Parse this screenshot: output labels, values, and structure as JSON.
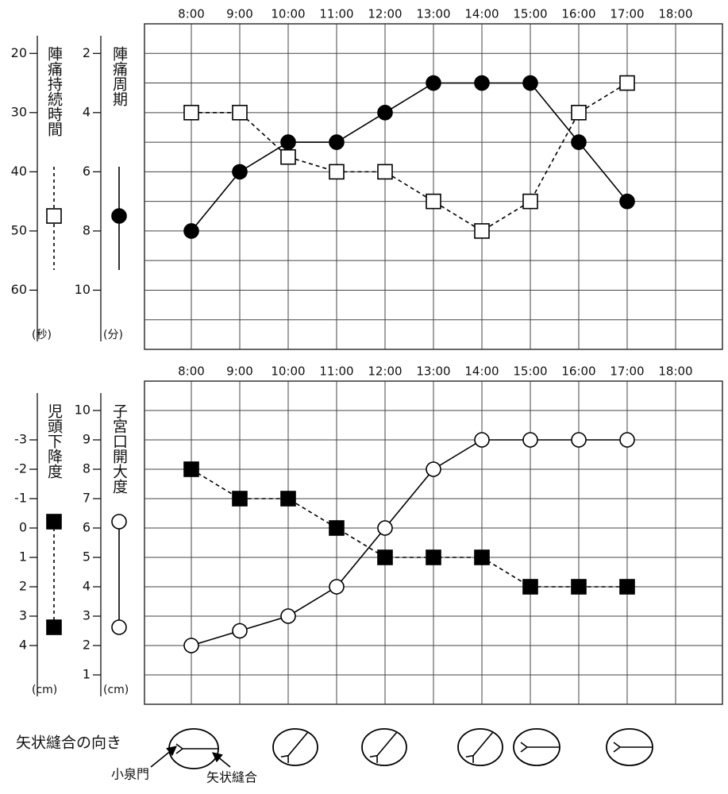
{
  "chart_data": [
    {
      "type": "line",
      "categories": [
        "8:00",
        "9:00",
        "10:00",
        "11:00",
        "12:00",
        "13:00",
        "14:00",
        "15:00",
        "16:00",
        "17:00",
        "18:00"
      ],
      "ylabel": "(分)",
      "y2label": "(秒)",
      "ylim": [
        12,
        1
      ],
      "yticks": [
        2,
        4,
        6,
        8,
        10
      ],
      "minor_yticks": [
        3,
        5,
        7,
        9,
        11
      ],
      "y2lim": [
        70,
        15
      ],
      "y2ticks": [
        20,
        30,
        40,
        50,
        60
      ],
      "grid": true,
      "series": [
        {
          "name": "陣痛周期",
          "color": "#000000",
          "marker": "circle",
          "marker_fill": "#000000",
          "line_style": "solid",
          "values": [
            8,
            6,
            5,
            5,
            4,
            3,
            3,
            3,
            5,
            7,
            null
          ]
        },
        {
          "name": "陣痛持続時間",
          "axis": "y2",
          "color": "#000000",
          "marker": "square",
          "marker_fill": "#ffffff",
          "line_style": "dashed",
          "values": [
            30,
            30,
            37.5,
            40,
            40,
            45,
            50,
            45,
            30,
            25,
            null
          ]
        }
      ]
    },
    {
      "type": "line",
      "categories": [
        "8:00",
        "9:00",
        "10:00",
        "11:00",
        "12:00",
        "13:00",
        "14:00",
        "15:00",
        "16:00",
        "17:00",
        "18:00"
      ],
      "ylabel": "(cm)",
      "y2label": "(cm)",
      "ylim": [
        0,
        11
      ],
      "yticks": [
        1,
        2,
        3,
        4,
        5,
        6,
        7,
        8,
        9,
        10
      ],
      "y2lim": [
        6,
        -5
      ],
      "y2ticks": [
        -3,
        -2,
        -1,
        0,
        1,
        2,
        3,
        4
      ],
      "grid": true,
      "series": [
        {
          "name": "子宮口開大度",
          "color": "#000000",
          "marker": "circle",
          "marker_fill": "#ffffff",
          "line_style": "solid",
          "values": [
            2,
            2.5,
            3,
            4,
            6,
            8,
            9,
            9,
            9,
            9,
            null
          ]
        },
        {
          "name": "児頭下降度",
          "axis": "y2",
          "color": "#000000",
          "marker": "square",
          "marker_fill": "#000000",
          "line_style": "dashed",
          "values": [
            -2,
            -1,
            -1,
            0,
            1,
            1,
            1,
            2,
            2,
            2,
            null
          ]
        }
      ]
    }
  ],
  "sagittal_suture": {
    "label": "矢状縫合の向き",
    "annotations": [
      "小泉門",
      "矢状縫合"
    ]
  }
}
